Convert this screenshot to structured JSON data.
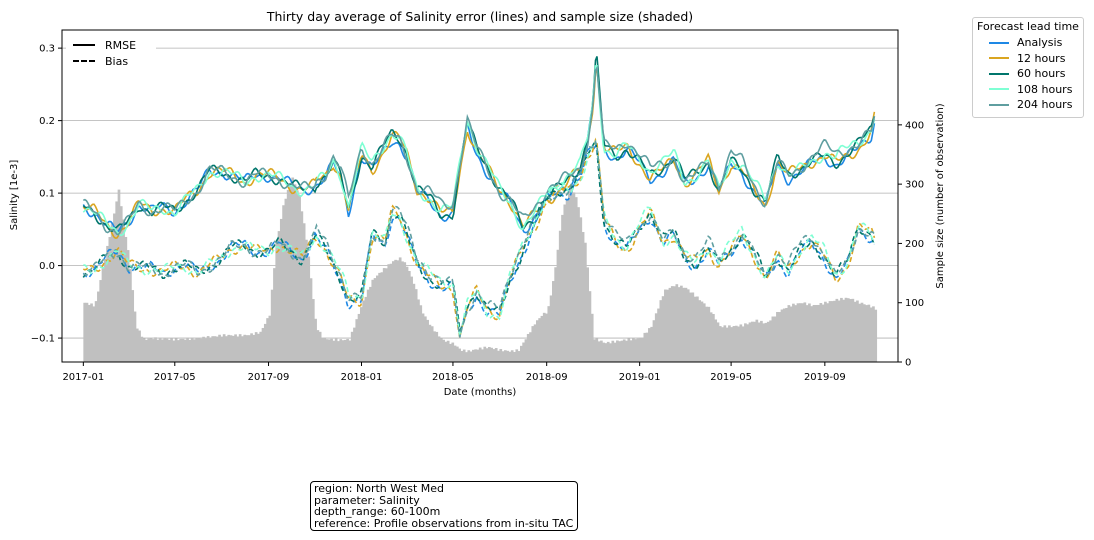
{
  "chart_data": {
    "type": "line",
    "title": "Thirty day average of Salinity error (lines) and sample size (shaded)",
    "xlabel": "Date (months)",
    "ylabel": "Salinity [1e-3]",
    "ylabel_right": "Sample size (number of observation)",
    "x_ticks": [
      "2017-01",
      "2017-05",
      "2017-09",
      "2018-01",
      "2018-05",
      "2018-09",
      "2019-01",
      "2019-05",
      "2019-09"
    ],
    "x_tick_values": [
      "2017-01-01",
      "2017-05-01",
      "2017-09-01",
      "2018-01-01",
      "2018-05-01",
      "2018-09-01",
      "2019-01-01",
      "2019-05-01",
      "2019-09-01"
    ],
    "xlim": [
      "2016-12-04",
      "2019-12-06"
    ],
    "y_ticks": [
      "0.3",
      "0.2",
      "0.1",
      "0.0",
      "−0.1"
    ],
    "y_tick_values": [
      0.3,
      0.2,
      0.1,
      0.0,
      -0.1
    ],
    "ylim": [
      -0.133,
      0.325
    ],
    "y2_ticks": [
      "0",
      "100",
      "200",
      "300",
      "400"
    ],
    "y2_tick_values": [
      0,
      100,
      200,
      300,
      400
    ],
    "y2lim": [
      0,
      560
    ],
    "grid": "horizontal",
    "legend_lead_title": "Forecast lead time",
    "legend_lead_position": "outside-top-right",
    "legend_style_position": "top-left",
    "style_legend": [
      {
        "label": "RMSE",
        "dash": "solid"
      },
      {
        "label": "Bias",
        "dash": "dashed"
      }
    ],
    "series": [
      {
        "name": "Analysis",
        "color": "#1e88e5",
        "role": "lead"
      },
      {
        "name": "12 hours",
        "color": "#daa520",
        "role": "lead"
      },
      {
        "name": "60 hours",
        "color": "#00766c",
        "role": "lead"
      },
      {
        "name": "108 hours",
        "color": "#7fffd4",
        "role": "lead"
      },
      {
        "name": "204 hours",
        "color": "#5f9ea0",
        "role": "lead"
      }
    ],
    "sample_size_color": "#c0c0c0",
    "sample_size": {
      "dates": [
        "2017-01-01",
        "2017-01-15",
        "2017-02-01",
        "2017-02-15",
        "2017-03-01",
        "2017-03-10",
        "2017-03-20",
        "2017-04-01",
        "2017-05-01",
        "2017-06-01",
        "2017-07-01",
        "2017-08-01",
        "2017-08-20",
        "2017-09-01",
        "2017-09-10",
        "2017-09-20",
        "2017-10-01",
        "2017-10-10",
        "2017-10-20",
        "2017-11-01",
        "2017-11-10",
        "2017-11-20",
        "2017-12-01",
        "2017-12-15",
        "2018-01-01",
        "2018-01-15",
        "2018-02-01",
        "2018-02-10",
        "2018-02-20",
        "2018-03-01",
        "2018-03-10",
        "2018-03-20",
        "2018-04-01",
        "2018-04-15",
        "2018-05-01",
        "2018-05-10",
        "2018-05-20",
        "2018-06-01",
        "2018-06-15",
        "2018-07-01",
        "2018-07-15",
        "2018-07-25",
        "2018-08-01",
        "2018-08-15",
        "2018-08-25",
        "2018-09-01",
        "2018-09-10",
        "2018-09-20",
        "2018-10-01",
        "2018-10-10",
        "2018-10-20",
        "2018-11-01",
        "2018-11-15",
        "2018-12-01",
        "2018-12-15",
        "2019-01-01",
        "2019-01-15",
        "2019-02-01",
        "2019-02-15",
        "2019-03-01",
        "2019-03-15",
        "2019-04-01",
        "2019-04-15",
        "2019-05-01",
        "2019-05-15",
        "2019-06-01",
        "2019-06-15",
        "2019-07-01",
        "2019-07-15",
        "2019-08-01",
        "2019-08-15",
        "2019-09-01",
        "2019-09-15",
        "2019-10-01",
        "2019-10-15",
        "2019-10-28",
        "2019-11-05"
      ],
      "values": [
        100,
        95,
        200,
        290,
        170,
        60,
        38,
        40,
        38,
        40,
        45,
        45,
        50,
        80,
        200,
        270,
        310,
        280,
        200,
        60,
        40,
        38,
        37,
        38,
        100,
        140,
        160,
        170,
        175,
        160,
        130,
        85,
        60,
        38,
        30,
        20,
        18,
        22,
        25,
        20,
        18,
        20,
        35,
        65,
        80,
        85,
        150,
        250,
        300,
        270,
        200,
        40,
        32,
        35,
        38,
        40,
        60,
        120,
        130,
        125,
        110,
        90,
        60,
        60,
        62,
        70,
        65,
        85,
        95,
        100,
        95,
        100,
        105,
        108,
        100,
        95,
        90
      ]
    },
    "rmse_base": {
      "dates": [
        "2017-01-01",
        "2017-01-15",
        "2017-02-01",
        "2017-02-15",
        "2017-03-01",
        "2017-03-15",
        "2017-04-01",
        "2017-04-15",
        "2017-05-01",
        "2017-05-15",
        "2017-06-01",
        "2017-06-15",
        "2017-07-01",
        "2017-07-15",
        "2017-08-01",
        "2017-08-15",
        "2017-09-01",
        "2017-09-15",
        "2017-10-01",
        "2017-10-15",
        "2017-11-01",
        "2017-11-15",
        "2017-11-25",
        "2017-12-05",
        "2017-12-15",
        "2018-01-01",
        "2018-01-15",
        "2018-02-01",
        "2018-02-10",
        "2018-02-20",
        "2018-03-01",
        "2018-03-15",
        "2018-04-01",
        "2018-04-15",
        "2018-05-01",
        "2018-05-10",
        "2018-05-20",
        "2018-06-01",
        "2018-06-15",
        "2018-07-01",
        "2018-07-15",
        "2018-08-01",
        "2018-08-15",
        "2018-09-01",
        "2018-09-15",
        "2018-10-01",
        "2018-10-15",
        "2018-10-25",
        "2018-11-01",
        "2018-11-05",
        "2018-11-15",
        "2018-12-01",
        "2018-12-15",
        "2019-01-01",
        "2019-01-15",
        "2019-02-01",
        "2019-02-15",
        "2019-03-01",
        "2019-03-15",
        "2019-04-01",
        "2019-04-15",
        "2019-05-01",
        "2019-05-15",
        "2019-06-01",
        "2019-06-15",
        "2019-07-01",
        "2019-07-15",
        "2019-08-01",
        "2019-08-15",
        "2019-09-01",
        "2019-09-15",
        "2019-10-01",
        "2019-10-15",
        "2019-11-01",
        "2019-11-05"
      ],
      "values": [
        0.082,
        0.075,
        0.055,
        0.045,
        0.06,
        0.085,
        0.075,
        0.08,
        0.075,
        0.09,
        0.105,
        0.13,
        0.13,
        0.125,
        0.115,
        0.125,
        0.125,
        0.12,
        0.11,
        0.105,
        0.11,
        0.12,
        0.14,
        0.12,
        0.075,
        0.15,
        0.13,
        0.16,
        0.175,
        0.17,
        0.15,
        0.1,
        0.09,
        0.07,
        0.07,
        0.13,
        0.19,
        0.155,
        0.13,
        0.1,
        0.085,
        0.05,
        0.065,
        0.09,
        0.1,
        0.115,
        0.13,
        0.17,
        0.22,
        0.285,
        0.16,
        0.15,
        0.16,
        0.14,
        0.12,
        0.13,
        0.145,
        0.11,
        0.12,
        0.14,
        0.1,
        0.14,
        0.13,
        0.1,
        0.08,
        0.14,
        0.12,
        0.13,
        0.14,
        0.15,
        0.14,
        0.15,
        0.16,
        0.18,
        0.2
      ]
    },
    "bias_base": {
      "dates": [
        "2017-01-01",
        "2017-01-15",
        "2017-02-01",
        "2017-02-15",
        "2017-03-01",
        "2017-03-15",
        "2017-04-01",
        "2017-04-15",
        "2017-05-01",
        "2017-05-15",
        "2017-06-01",
        "2017-06-15",
        "2017-07-01",
        "2017-07-15",
        "2017-08-01",
        "2017-08-15",
        "2017-09-01",
        "2017-09-15",
        "2017-10-01",
        "2017-10-15",
        "2017-11-01",
        "2017-11-15",
        "2017-11-25",
        "2017-12-05",
        "2017-12-15",
        "2018-01-01",
        "2018-01-15",
        "2018-02-01",
        "2018-02-10",
        "2018-02-20",
        "2018-03-01",
        "2018-03-15",
        "2018-04-01",
        "2018-04-15",
        "2018-05-01",
        "2018-05-10",
        "2018-05-20",
        "2018-06-01",
        "2018-06-15",
        "2018-07-01",
        "2018-07-15",
        "2018-08-01",
        "2018-08-15",
        "2018-09-01",
        "2018-09-15",
        "2018-10-01",
        "2018-10-15",
        "2018-10-25",
        "2018-11-01",
        "2018-11-05",
        "2018-11-15",
        "2018-12-01",
        "2018-12-15",
        "2019-01-01",
        "2019-01-15",
        "2019-02-01",
        "2019-02-15",
        "2019-03-01",
        "2019-03-15",
        "2019-04-01",
        "2019-04-15",
        "2019-05-01",
        "2019-05-15",
        "2019-06-01",
        "2019-06-15",
        "2019-07-01",
        "2019-07-15",
        "2019-08-01",
        "2019-08-15",
        "2019-09-01",
        "2019-09-15",
        "2019-10-01",
        "2019-10-15",
        "2019-11-01",
        "2019-11-05"
      ],
      "values": [
        -0.008,
        -0.006,
        0.01,
        0.02,
        0.0,
        -0.002,
        -0.005,
        -0.01,
        -0.002,
        0.0,
        -0.01,
        0.0,
        0.01,
        0.025,
        0.028,
        0.02,
        0.02,
        0.03,
        0.02,
        0.01,
        0.04,
        0.02,
        0.0,
        -0.02,
        -0.05,
        -0.05,
        0.04,
        0.03,
        0.07,
        0.065,
        0.04,
        0.0,
        -0.02,
        -0.03,
        -0.03,
        -0.1,
        -0.06,
        -0.04,
        -0.065,
        -0.07,
        -0.02,
        0.02,
        0.05,
        0.09,
        0.1,
        0.1,
        0.12,
        0.15,
        0.16,
        0.17,
        0.06,
        0.03,
        0.02,
        0.05,
        0.07,
        0.03,
        0.04,
        0.01,
        0.0,
        0.02,
        0.0,
        0.02,
        0.04,
        0.01,
        -0.02,
        0.01,
        -0.01,
        0.02,
        0.03,
        0.01,
        -0.02,
        0.0,
        0.05,
        0.04,
        0.03
      ]
    },
    "lead_offsets_rmse": [
      0.0,
      0.005,
      0.008,
      0.012,
      0.015
    ],
    "lead_offsets_bias": [
      0.0,
      0.004,
      0.006,
      0.009,
      0.012
    ]
  },
  "info_box": {
    "line1": "region: North West Med",
    "line2": "parameter: Salinity",
    "line3": "depth_range: 60-100m",
    "line4": "reference: Profile observations from in-situ TAC"
  }
}
